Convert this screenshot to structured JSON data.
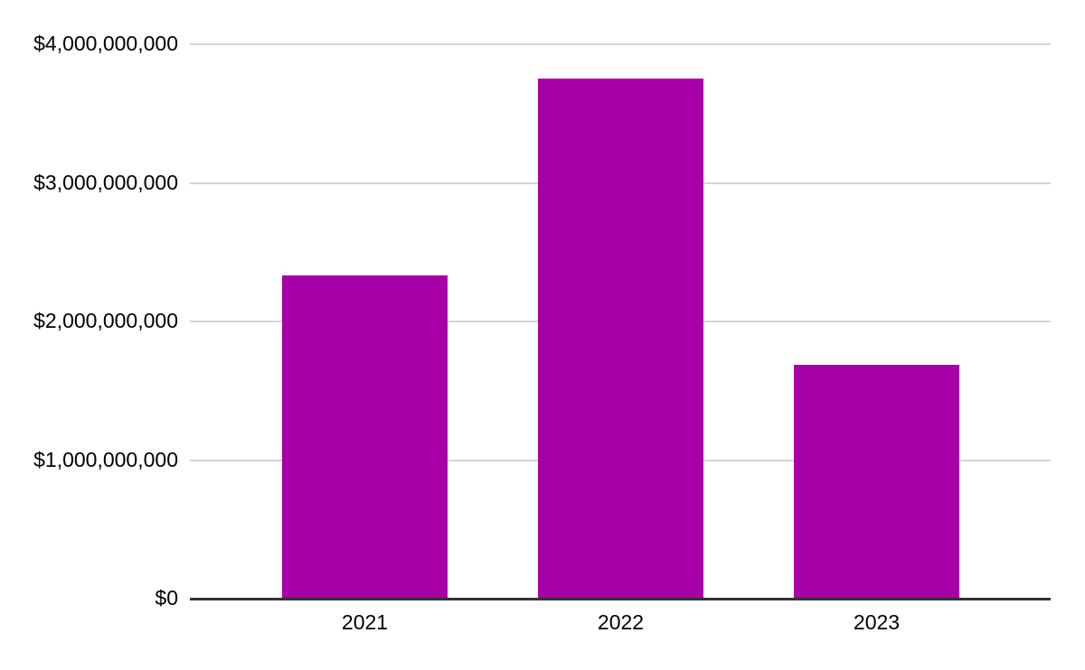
{
  "chart_data": {
    "type": "bar",
    "title": "",
    "xlabel": "",
    "ylabel": "",
    "categories": [
      "2021",
      "2022",
      "2023"
    ],
    "values": [
      2330000000,
      3750000000,
      1690000000
    ],
    "series_color": "#A800A8",
    "ylim": [
      0,
      4000000000
    ],
    "y_ticks": [
      {
        "label": "$0",
        "value": 0
      },
      {
        "label": "$1,000,000,000",
        "value": 1000000000
      },
      {
        "label": "$2,000,000,000",
        "value": 2000000000
      },
      {
        "label": "$3,000,000,000",
        "value": 3000000000
      },
      {
        "label": "$4,000,000,000",
        "value": 4000000000
      }
    ],
    "grid": true,
    "legend_position": "none",
    "background_color": "#ffffff",
    "gridline_color": "#d4d4d4",
    "axis_line_color": "#333333",
    "label_color": "#000000"
  }
}
